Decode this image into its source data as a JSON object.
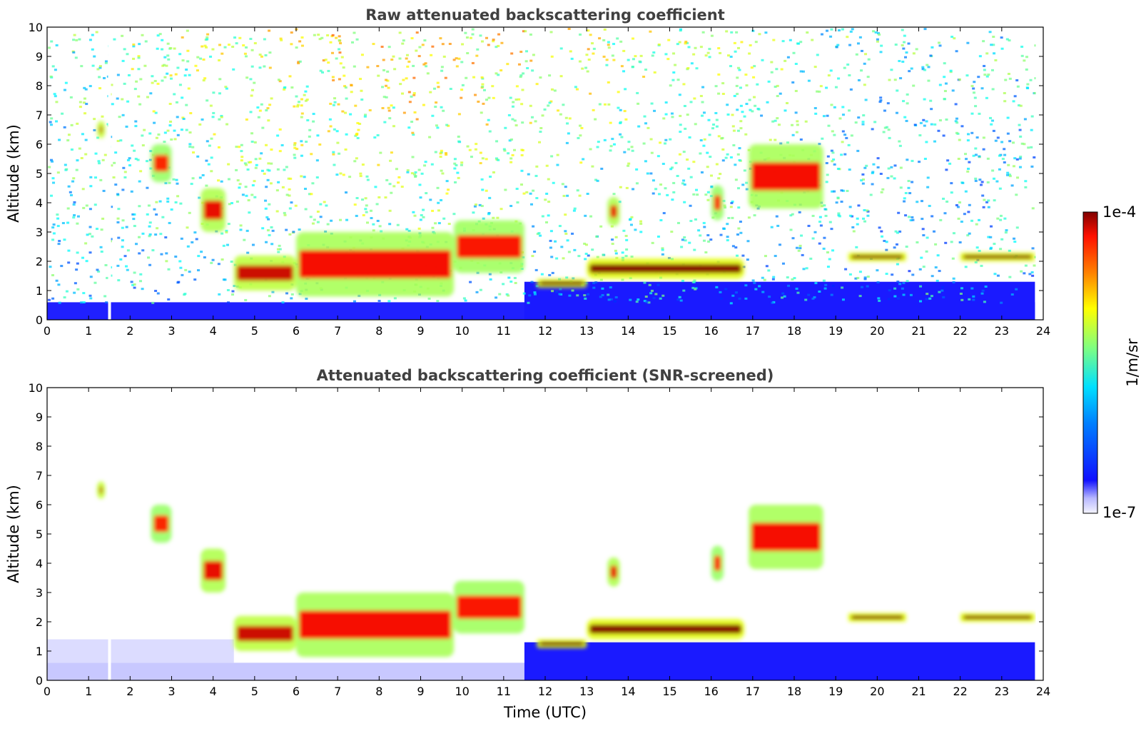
{
  "chart_data": [
    {
      "type": "heatmap",
      "title": "Raw attenuated backscattering coefficient",
      "xlabel": "",
      "ylabel": "Altitude (km)",
      "xlim": [
        0,
        24
      ],
      "ylim": [
        0,
        10
      ],
      "xticks": [
        "0",
        "1",
        "2",
        "3",
        "4",
        "5",
        "6",
        "7",
        "8",
        "9",
        "10",
        "11",
        "12",
        "13",
        "14",
        "15",
        "16",
        "17",
        "18",
        "19",
        "20",
        "21",
        "22",
        "23",
        "24"
      ],
      "yticks": [
        "0",
        "1",
        "2",
        "3",
        "4",
        "5",
        "6",
        "7",
        "8",
        "9",
        "10"
      ],
      "grid": false,
      "noise": "high",
      "features": [
        {
          "t0": 1.2,
          "t1": 1.4,
          "z0": 6.2,
          "z1": 6.8,
          "level": 0.8
        },
        {
          "t0": 2.5,
          "t1": 3.0,
          "z0": 4.7,
          "z1": 6.0,
          "level": 0.5
        },
        {
          "t0": 3.7,
          "t1": 4.3,
          "z0": 3.0,
          "z1": 4.5,
          "level": 0.65
        },
        {
          "t0": 4.5,
          "t1": 6.0,
          "z0": 1.0,
          "z1": 2.2,
          "level": 0.75
        },
        {
          "t0": 6.0,
          "t1": 9.8,
          "z0": 0.8,
          "z1": 3.0,
          "level": 0.6
        },
        {
          "t0": 9.8,
          "t1": 11.5,
          "z0": 1.6,
          "z1": 3.4,
          "level": 0.55
        },
        {
          "t0": 11.8,
          "t1": 13.0,
          "z0": 1.1,
          "z1": 1.4,
          "level": 1.0
        },
        {
          "t0": 13.0,
          "t1": 16.8,
          "z0": 1.4,
          "z1": 2.1,
          "level": 1.0
        },
        {
          "t0": 13.5,
          "t1": 13.8,
          "z0": 3.2,
          "z1": 4.2,
          "level": 0.65
        },
        {
          "t0": 16.0,
          "t1": 16.3,
          "z0": 3.4,
          "z1": 4.6,
          "level": 0.5
        },
        {
          "t0": 16.9,
          "t1": 18.7,
          "z0": 3.8,
          "z1": 6.0,
          "level": 0.6
        },
        {
          "t0": 19.3,
          "t1": 20.7,
          "z0": 2.0,
          "z1": 2.3,
          "level": 1.0
        },
        {
          "t0": 22.0,
          "t1": 23.8,
          "z0": 2.0,
          "z1": 2.3,
          "level": 1.0
        }
      ]
    },
    {
      "type": "heatmap",
      "title": "Attenuated backscattering coefficient (SNR-screened)",
      "xlabel": "Time (UTC)",
      "ylabel": "Altitude (km)",
      "xlim": [
        0,
        24
      ],
      "ylim": [
        0,
        10
      ],
      "xticks": [
        "0",
        "1",
        "2",
        "3",
        "4",
        "5",
        "6",
        "7",
        "8",
        "9",
        "10",
        "11",
        "12",
        "13",
        "14",
        "15",
        "16",
        "17",
        "18",
        "19",
        "20",
        "21",
        "22",
        "23",
        "24"
      ],
      "yticks": [
        "0",
        "1",
        "2",
        "3",
        "4",
        "5",
        "6",
        "7",
        "8",
        "9",
        "10"
      ],
      "grid": false,
      "noise": "screened",
      "features": [
        {
          "t0": 1.2,
          "t1": 1.4,
          "z0": 6.2,
          "z1": 6.8,
          "level": 0.8
        },
        {
          "t0": 2.5,
          "t1": 3.0,
          "z0": 4.7,
          "z1": 6.0,
          "level": 0.5
        },
        {
          "t0": 3.7,
          "t1": 4.3,
          "z0": 3.0,
          "z1": 4.5,
          "level": 0.65
        },
        {
          "t0": 4.5,
          "t1": 6.0,
          "z0": 1.0,
          "z1": 2.2,
          "level": 0.75
        },
        {
          "t0": 6.0,
          "t1": 9.8,
          "z0": 0.8,
          "z1": 3.0,
          "level": 0.6
        },
        {
          "t0": 9.8,
          "t1": 11.5,
          "z0": 1.6,
          "z1": 3.4,
          "level": 0.55
        },
        {
          "t0": 11.8,
          "t1": 13.0,
          "z0": 1.1,
          "z1": 1.4,
          "level": 1.0
        },
        {
          "t0": 13.0,
          "t1": 16.8,
          "z0": 1.4,
          "z1": 2.1,
          "level": 1.0
        },
        {
          "t0": 13.5,
          "t1": 13.8,
          "z0": 3.2,
          "z1": 4.2,
          "level": 0.65
        },
        {
          "t0": 16.0,
          "t1": 16.3,
          "z0": 3.4,
          "z1": 4.6,
          "level": 0.5
        },
        {
          "t0": 16.9,
          "t1": 18.7,
          "z0": 3.8,
          "z1": 6.0,
          "level": 0.6
        },
        {
          "t0": 19.3,
          "t1": 20.7,
          "z0": 2.0,
          "z1": 2.3,
          "level": 1.0
        },
        {
          "t0": 22.0,
          "t1": 23.8,
          "z0": 2.0,
          "z1": 2.3,
          "level": 1.0
        }
      ]
    }
  ],
  "colorbar": {
    "max_label": "1e-4",
    "min_label": "1e-7",
    "unit_label": "1/m/sr",
    "scale": "log",
    "range": [
      1e-07,
      0.0001
    ],
    "colormap": "jet"
  }
}
